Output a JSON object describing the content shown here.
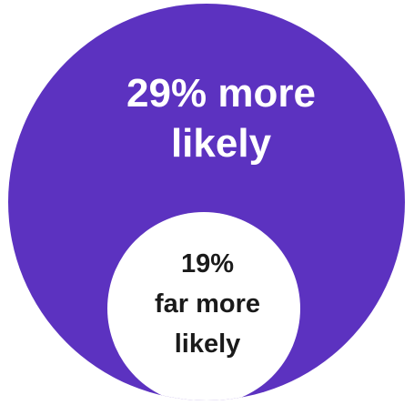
{
  "chart_data": {
    "type": "nested-circle",
    "series": [
      {
        "label_lines": [
          "29% more",
          "likely"
        ],
        "value": 29,
        "color": "#5c32c0",
        "text_color": "#ffffff"
      },
      {
        "label_lines": [
          "19%",
          "far more",
          "likely"
        ],
        "value": 19,
        "color": "#ffffff",
        "text_color": "#1a1a1a"
      }
    ]
  }
}
